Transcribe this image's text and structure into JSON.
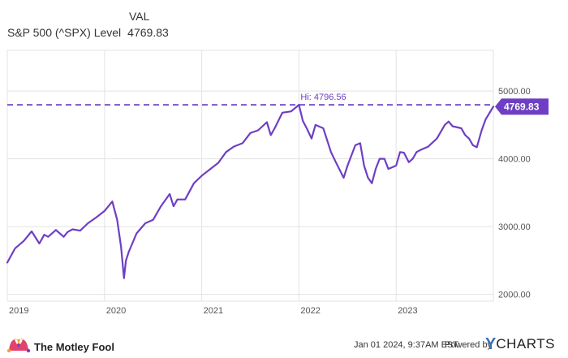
{
  "legend": {
    "header": "VAL",
    "series_name": "S&P 500 (^SPX) Level",
    "series_value": "4769.83"
  },
  "chart_data": {
    "type": "line",
    "ylim": [
      1900,
      5600
    ],
    "x_ticks": [
      "2019",
      "2020",
      "2021",
      "2022",
      "2023"
    ],
    "y_ticks": [
      "5000.00",
      "4000.00",
      "3000.00",
      "2000.00"
    ],
    "y_tick_values": [
      5000,
      4000,
      3000,
      2000
    ],
    "hi_label": "Hi: 4796.56",
    "hi_value": 4796.56,
    "last_label": "4769.83",
    "last_value": 4769.83,
    "series": [
      {
        "name": "S&P 500 (^SPX) Level",
        "color": "#6e3fc4",
        "x": [
          2019.0,
          2019.08,
          2019.17,
          2019.25,
          2019.33,
          2019.38,
          2019.42,
          2019.5,
          2019.58,
          2019.62,
          2019.67,
          2019.75,
          2019.83,
          2019.92,
          2020.0,
          2020.08,
          2020.13,
          2020.17,
          2020.2,
          2020.22,
          2020.25,
          2020.33,
          2020.42,
          2020.5,
          2020.58,
          2020.67,
          2020.71,
          2020.75,
          2020.83,
          2020.92,
          2021.0,
          2021.08,
          2021.17,
          2021.25,
          2021.33,
          2021.42,
          2021.5,
          2021.58,
          2021.67,
          2021.71,
          2021.75,
          2021.83,
          2021.92,
          2022.0,
          2022.04,
          2022.08,
          2022.13,
          2022.17,
          2022.25,
          2022.33,
          2022.38,
          2022.46,
          2022.5,
          2022.58,
          2022.63,
          2022.67,
          2022.71,
          2022.75,
          2022.79,
          2022.83,
          2022.88,
          2022.92,
          2023.0,
          2023.04,
          2023.08,
          2023.13,
          2023.17,
          2023.21,
          2023.25,
          2023.33,
          2023.42,
          2023.5,
          2023.54,
          2023.58,
          2023.67,
          2023.71,
          2023.75,
          2023.79,
          2023.83,
          2023.88,
          2023.92,
          2024.0
        ],
        "values": [
          2470,
          2680,
          2790,
          2930,
          2750,
          2880,
          2850,
          2950,
          2850,
          2920,
          2960,
          2940,
          3050,
          3140,
          3230,
          3370,
          3100,
          2700,
          2240,
          2500,
          2630,
          2900,
          3050,
          3100,
          3300,
          3480,
          3300,
          3400,
          3400,
          3640,
          3750,
          3840,
          3940,
          4100,
          4180,
          4230,
          4380,
          4420,
          4540,
          4350,
          4450,
          4680,
          4700,
          4796,
          4560,
          4450,
          4300,
          4500,
          4450,
          4100,
          3950,
          3720,
          3900,
          4200,
          4230,
          3900,
          3720,
          3640,
          3850,
          4000,
          4000,
          3850,
          3900,
          4100,
          4090,
          3950,
          4000,
          4100,
          4130,
          4180,
          4300,
          4500,
          4550,
          4480,
          4450,
          4350,
          4300,
          4200,
          4170,
          4420,
          4580,
          4770
        ]
      }
    ]
  },
  "footer": {
    "brand": "The Motley Fool",
    "timestamp": "Jan 01 2024, 9:37AM EST.",
    "powered_by": "Powered by",
    "ycharts_y": "Y",
    "ycharts_rest": "CHARTS"
  },
  "colors": {
    "line": "#6e3fc4",
    "grid": "#e3e3e3",
    "axis_text": "#555555",
    "badge_text": "#ffffff"
  }
}
